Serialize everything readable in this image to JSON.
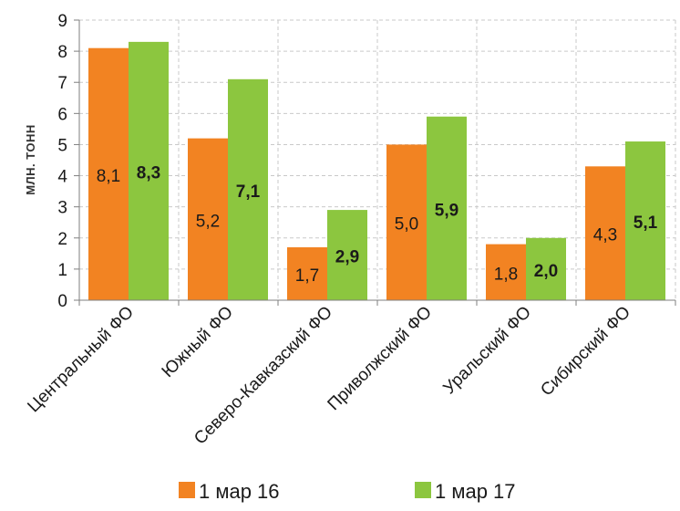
{
  "chart_data": {
    "type": "bar",
    "title": "",
    "xlabel": "",
    "ylabel": "МЛН. ТОНН",
    "ylim": [
      0,
      9
    ],
    "yticks": [
      "0",
      "1",
      "2",
      "3",
      "4",
      "5",
      "6",
      "7",
      "8",
      "9"
    ],
    "grid": true,
    "legend_position": "bottom",
    "categories": [
      "Центральный ФО",
      "Южный ФО",
      "Северо-Кавказский ФО",
      "Приволжский ФО",
      "Уральский ФО",
      "Сибирский ФО"
    ],
    "series": [
      {
        "name": "1 мар 16",
        "color": "#f28322",
        "values": [
          8.1,
          5.2,
          1.7,
          5.0,
          1.8,
          4.3
        ],
        "labels": [
          "8,1",
          "5,2",
          "1,7",
          "5,0",
          "1,8",
          "4,3"
        ],
        "label_bold": false
      },
      {
        "name": "1 мар 17",
        "color": "#8cc63f",
        "values": [
          8.3,
          7.1,
          2.9,
          5.9,
          2.0,
          5.1
        ],
        "labels": [
          "8,3",
          "7,1",
          "2,9",
          "5,9",
          "2,0",
          "5,1"
        ],
        "label_bold": true
      }
    ]
  }
}
